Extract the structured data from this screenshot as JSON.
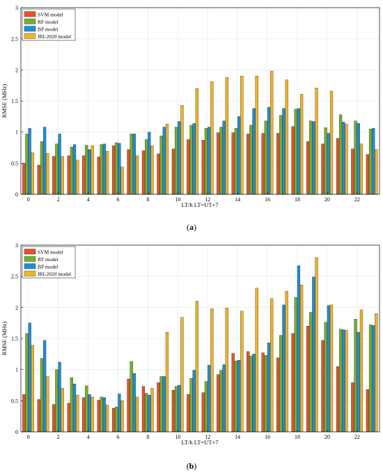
{
  "panels": [
    {
      "caption_prefix": "(",
      "caption_letter": "a",
      "caption_suffix": ")"
    },
    {
      "caption_prefix": "(",
      "caption_letter": "b",
      "caption_suffix": ")"
    }
  ],
  "colors": {
    "SVM model": "#e2552a",
    "RF model": "#77ad30",
    "BP model": "#1e8fd6",
    "IRI-2020 model": "#f0b427",
    "axis": "#000000",
    "grid": "#ebebeb"
  },
  "chart_data": [
    {
      "type": "bar",
      "xlabel": "LT/h  LT=UT+7",
      "ylabel": "RMSE (MHz)",
      "ylim": [
        0,
        3
      ],
      "yticks": [
        "0",
        "0.5",
        "1",
        "1.5",
        "2",
        "2.5",
        "3"
      ],
      "xticks": [
        "0",
        "2",
        "4",
        "6",
        "8",
        "10",
        "12",
        "14",
        "16",
        "18",
        "20",
        "22"
      ],
      "grid": true,
      "legend_position": "top-left",
      "categories": [
        0,
        1,
        2,
        3,
        4,
        5,
        6,
        7,
        8,
        9,
        10,
        11,
        12,
        13,
        14,
        15,
        16,
        17,
        18,
        19,
        20,
        21,
        22,
        23
      ],
      "series": [
        {
          "name": "SVM model",
          "values": [
            0.5,
            0.47,
            0.61,
            0.62,
            0.62,
            0.6,
            0.78,
            0.72,
            0.7,
            0.65,
            0.73,
            0.88,
            0.87,
            0.99,
            0.99,
            0.97,
            0.98,
            0.98,
            1.09,
            0.85,
            0.81,
            0.9,
            0.73,
            0.64
          ]
        },
        {
          "name": "RF model",
          "values": [
            0.97,
            0.85,
            0.81,
            0.76,
            0.79,
            0.8,
            0.83,
            0.97,
            0.88,
            0.94,
            1.08,
            1.11,
            1.06,
            1.08,
            1.06,
            1.11,
            1.18,
            1.27,
            1.37,
            1.18,
            1.07,
            1.28,
            1.18,
            1.05
          ]
        },
        {
          "name": "BP model",
          "values": [
            1.06,
            1.08,
            0.97,
            0.8,
            0.72,
            0.81,
            0.82,
            0.97,
            1.0,
            1.08,
            1.17,
            1.14,
            1.08,
            1.18,
            1.25,
            1.38,
            1.4,
            1.38,
            1.38,
            1.17,
            0.98,
            1.16,
            1.14,
            1.06
          ]
        },
        {
          "name": "IRI-2020 model",
          "values": [
            0.67,
            0.66,
            0.61,
            0.55,
            0.78,
            0.69,
            0.44,
            0.62,
            0.78,
            1.13,
            1.43,
            1.7,
            1.81,
            1.88,
            1.9,
            1.9,
            1.98,
            1.84,
            1.61,
            1.71,
            1.66,
            1.13,
            0.81,
            0.72
          ]
        }
      ]
    },
    {
      "type": "bar",
      "xlabel": "LT/h  LT=UT+7",
      "ylabel": "RMSE (MHz)",
      "ylim": [
        0,
        3
      ],
      "yticks": [
        "0",
        "0.5",
        "1",
        "1.5",
        "2",
        "2.5",
        "3"
      ],
      "xticks": [
        "0",
        "2",
        "4",
        "6",
        "8",
        "10",
        "12",
        "14",
        "16",
        "18",
        "20",
        "22"
      ],
      "grid": true,
      "legend_position": "top-left",
      "categories": [
        0,
        1,
        2,
        3,
        4,
        5,
        6,
        7,
        8,
        9,
        10,
        11,
        12,
        13,
        14,
        15,
        16,
        17,
        18,
        19,
        20,
        21,
        22,
        23
      ],
      "series": [
        {
          "name": "SVM model",
          "values": [
            0.6,
            0.52,
            0.44,
            0.46,
            0.55,
            0.51,
            0.38,
            0.85,
            0.73,
            0.79,
            0.67,
            0.6,
            0.63,
            0.92,
            1.26,
            1.29,
            1.27,
            1.19,
            1.58,
            1.7,
            1.47,
            1.05,
            0.79,
            0.68
          ]
        },
        {
          "name": "RF model",
          "values": [
            1.58,
            1.18,
            1.0,
            0.87,
            0.74,
            0.56,
            0.4,
            1.13,
            0.62,
            0.89,
            0.73,
            0.86,
            0.81,
            0.99,
            1.14,
            1.22,
            1.23,
            1.55,
            2.16,
            1.92,
            1.76,
            1.65,
            1.81,
            1.72
          ]
        },
        {
          "name": "BP model",
          "values": [
            1.75,
            1.47,
            1.12,
            0.77,
            0.6,
            0.55,
            0.61,
            0.94,
            0.59,
            0.89,
            0.75,
            0.99,
            1.07,
            1.08,
            1.15,
            1.25,
            1.43,
            2.04,
            2.67,
            2.49,
            2.03,
            1.64,
            1.6,
            1.71
          ]
        },
        {
          "name": "IRI-2020 model",
          "values": [
            1.39,
            0.89,
            0.7,
            0.59,
            0.56,
            0.43,
            0.5,
            0.56,
            0.7,
            1.6,
            1.84,
            2.1,
            1.98,
            1.99,
            1.94,
            2.31,
            2.14,
            2.26,
            2.36,
            2.8,
            2.04,
            1.63,
            1.96,
            1.9
          ]
        }
      ]
    }
  ]
}
